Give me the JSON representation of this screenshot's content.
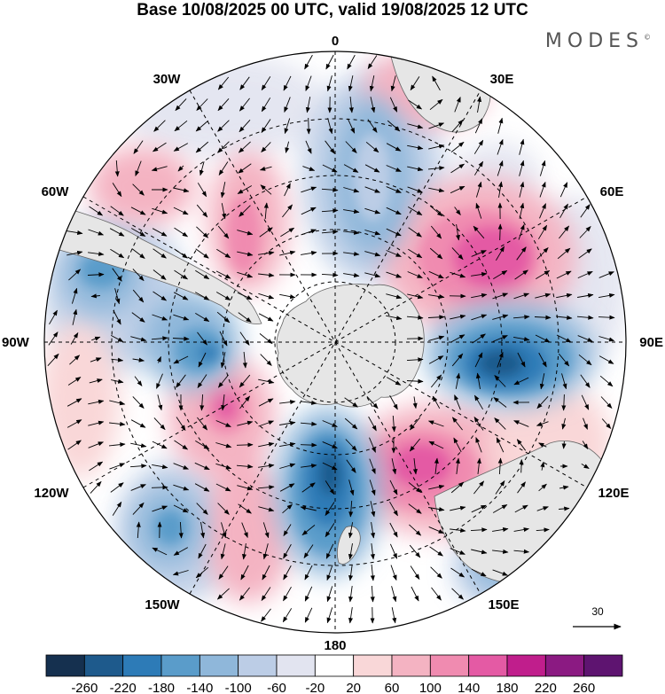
{
  "title": "Base 10/08/2025 00 UTC, valid 19/08/2025 12 UTC",
  "brand": "MODES",
  "brand_mark": "©",
  "longitude_labels": {
    "top": "0",
    "bottom": "180",
    "left": "90W",
    "right": "90E",
    "upper_left_1": "30W",
    "upper_left_2": "60W",
    "upper_right_1": "30E",
    "upper_right_2": "60E",
    "lower_left_1": "120W",
    "lower_left_2": "150W",
    "lower_right_1": "120E",
    "lower_right_2": "150E"
  },
  "reference_vector": "30",
  "colorbar": {
    "ticks": [
      "-260",
      "-220",
      "-180",
      "-140",
      "-100",
      "-60",
      "-20",
      "20",
      "60",
      "100",
      "140",
      "180",
      "220",
      "260"
    ],
    "colors": [
      "#15304f",
      "#1e5a8c",
      "#2d7bb7",
      "#5a9cca",
      "#8fb7da",
      "#bccde6",
      "#e2e4f0",
      "#ffffff",
      "#f9d7d8",
      "#f4b3c2",
      "#f08bb0",
      "#e45aa4",
      "#c01e8c",
      "#8b1a82",
      "#5e1470"
    ]
  },
  "map": {
    "projection": "south-polar-stereographic",
    "field": "geopotential height anomaly",
    "colors": {
      "land": "#e6e6e6",
      "grid": "#000000",
      "vectors": "#000000"
    }
  }
}
